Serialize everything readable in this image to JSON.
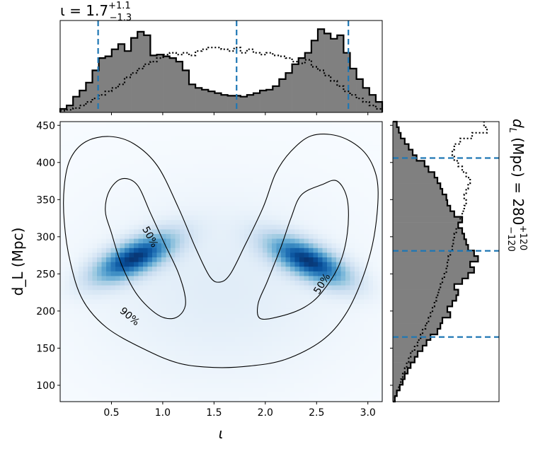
{
  "chart_data": [
    {
      "type": "heatmap",
      "panel": "joint",
      "xlabel": "ι",
      "ylabel": "d_L (Mpc)",
      "xlim": [
        0.0,
        3.14
      ],
      "ylim": [
        78,
        455
      ],
      "xticks": [
        0.5,
        1.0,
        1.5,
        2.0,
        2.5,
        3.0
      ],
      "xtick_labels": [
        "0.5",
        "1.0",
        "1.5",
        "2.0",
        "2.5",
        "3.0"
      ],
      "yticks": [
        100,
        150,
        200,
        250,
        300,
        350,
        400,
        450
      ],
      "ytick_labels": [
        "100",
        "150",
        "200",
        "250",
        "300",
        "350",
        "400",
        "450"
      ],
      "colormap": "Blues",
      "density_modes": [
        {
          "x": 0.72,
          "y": 272,
          "weight": 1.0
        },
        {
          "x": 2.42,
          "y": 268,
          "weight": 1.0
        }
      ],
      "contours": [
        {
          "label": "50%",
          "label_positions": [
            {
              "x": 0.88,
              "y": 300,
              "angle": 62
            },
            {
              "x": 2.55,
              "y": 237,
              "angle": -58
            }
          ],
          "regions": [
            [
              [
                0.48,
                362
              ],
              [
                0.6,
                378
              ],
              [
                0.75,
                370
              ],
              [
                0.88,
                332
              ],
              [
                1.02,
                290
              ],
              [
                1.15,
                252
              ],
              [
                1.22,
                218
              ],
              [
                1.2,
                200
              ],
              [
                1.1,
                190
              ],
              [
                0.95,
                195
              ],
              [
                0.75,
                222
              ],
              [
                0.6,
                262
              ],
              [
                0.5,
                305
              ],
              [
                0.44,
                335
              ]
            ],
            [
              [
                2.35,
                356
              ],
              [
                2.55,
                370
              ],
              [
                2.7,
                375
              ],
              [
                2.8,
                350
              ],
              [
                2.8,
                305
              ],
              [
                2.72,
                262
              ],
              [
                2.55,
                225
              ],
              [
                2.38,
                205
              ],
              [
                2.15,
                193
              ],
              [
                1.95,
                190
              ],
              [
                1.93,
                210
              ],
              [
                2.02,
                240
              ],
              [
                2.15,
                285
              ],
              [
                2.25,
                325
              ]
            ]
          ]
        },
        {
          "label": "90%",
          "label_positions": [
            {
              "x": 0.68,
              "y": 193,
              "angle": 40
            }
          ],
          "regions": [
            [
              [
                0.04,
                368
              ],
              [
                0.1,
                405
              ],
              [
                0.25,
                428
              ],
              [
                0.48,
                435
              ],
              [
                0.72,
                425
              ],
              [
                0.95,
                395
              ],
              [
                1.15,
                340
              ],
              [
                1.32,
                285
              ],
              [
                1.46,
                246
              ],
              [
                1.56,
                239
              ],
              [
                1.66,
                250
              ],
              [
                1.8,
                288
              ],
              [
                1.98,
                340
              ],
              [
                2.1,
                385
              ],
              [
                2.25,
                415
              ],
              [
                2.45,
                436
              ],
              [
                2.7,
                436
              ],
              [
                2.92,
                420
              ],
              [
                3.05,
                395
              ],
              [
                3.1,
                360
              ],
              [
                3.06,
                300
              ],
              [
                2.95,
                245
              ],
              [
                2.78,
                195
              ],
              [
                2.55,
                160
              ],
              [
                2.2,
                135
              ],
              [
                1.85,
                126
              ],
              [
                1.5,
                124
              ],
              [
                1.15,
                130
              ],
              [
                0.8,
                150
              ],
              [
                0.45,
                178
              ],
              [
                0.22,
                215
              ],
              [
                0.1,
                265
              ],
              [
                0.04,
                320
              ]
            ]
          ]
        }
      ]
    },
    {
      "type": "bar",
      "panel": "top-marginal",
      "title": "ι = 1.7^{+1.1}_{-1.3}",
      "title_main": "ι = 1.7",
      "title_sup": "+1.1",
      "title_sub": "−1.3",
      "orientation": "vertical",
      "x_edges": [
        0.0,
        0.0628,
        0.1256,
        0.1884,
        0.2512,
        0.314,
        0.3768,
        0.4396,
        0.5024,
        0.5652,
        0.628,
        0.6908,
        0.7536,
        0.8164,
        0.8792,
        0.942,
        1.0048,
        1.0676,
        1.1304,
        1.1932,
        1.256,
        1.3188,
        1.3816,
        1.4444,
        1.5072,
        1.57,
        1.6328,
        1.6956,
        1.7584,
        1.8212,
        1.884,
        1.9468,
        2.0096,
        2.0724,
        2.1352,
        2.198,
        2.2608,
        2.3236,
        2.3864,
        2.4492,
        2.512,
        2.5748,
        2.6376,
        2.7004,
        2.7632,
        2.826,
        2.8888,
        2.9516,
        3.0144,
        3.0772,
        3.14
      ],
      "filled_hist": [
        0.04,
        0.08,
        0.18,
        0.25,
        0.34,
        0.48,
        0.62,
        0.64,
        0.72,
        0.78,
        0.7,
        0.85,
        0.92,
        0.88,
        0.65,
        0.66,
        0.64,
        0.62,
        0.58,
        0.48,
        0.32,
        0.28,
        0.26,
        0.24,
        0.22,
        0.2,
        0.19,
        0.19,
        0.18,
        0.2,
        0.22,
        0.25,
        0.26,
        0.3,
        0.38,
        0.45,
        0.55,
        0.62,
        0.68,
        0.82,
        0.95,
        0.9,
        0.84,
        0.88,
        0.68,
        0.5,
        0.38,
        0.28,
        0.2,
        0.12
      ],
      "dotted_hist": [
        0.02,
        0.03,
        0.05,
        0.08,
        0.12,
        0.16,
        0.2,
        0.24,
        0.28,
        0.32,
        0.4,
        0.45,
        0.5,
        0.55,
        0.58,
        0.62,
        0.66,
        0.68,
        0.66,
        0.68,
        0.65,
        0.7,
        0.72,
        0.74,
        0.74,
        0.72,
        0.7,
        0.74,
        0.68,
        0.72,
        0.68,
        0.66,
        0.68,
        0.65,
        0.64,
        0.62,
        0.58,
        0.56,
        0.6,
        0.52,
        0.48,
        0.42,
        0.36,
        0.3,
        0.24,
        0.2,
        0.16,
        0.12,
        0.08,
        0.04
      ],
      "quantile_lines": [
        0.37,
        1.72,
        2.81
      ],
      "line_color": "#1f77b4",
      "fill_color": "#808080"
    },
    {
      "type": "bar",
      "panel": "right-marginal",
      "label": "d_L (Mpc) = 280^{+120}_{-120}",
      "label_main": "d",
      "label_sub_main": "L",
      "label_after": " (Mpc) = 280",
      "label_sup": "+120",
      "label_sub": "−120",
      "orientation": "horizontal",
      "y_edges": [
        78,
        85.54,
        93.08,
        100.62,
        108.16,
        115.7,
        123.24,
        130.78,
        138.32,
        145.86,
        153.4,
        160.94,
        168.48,
        176.02,
        183.56,
        191.1,
        198.64,
        206.18,
        213.72,
        221.26,
        228.8,
        236.34,
        243.88,
        251.42,
        258.96,
        266.5,
        274.04,
        281.58,
        289.12,
        296.66,
        304.2,
        311.74,
        319.28,
        326.82,
        334.36,
        341.9,
        349.44,
        356.98,
        364.52,
        372.06,
        379.6,
        387.14,
        394.68,
        402.22,
        409.76,
        417.3,
        424.84,
        432.38,
        439.92,
        447.46,
        455
      ],
      "filled_hist": [
        0.02,
        0.04,
        0.07,
        0.1,
        0.12,
        0.15,
        0.18,
        0.22,
        0.25,
        0.3,
        0.34,
        0.38,
        0.45,
        0.48,
        0.5,
        0.58,
        0.55,
        0.6,
        0.64,
        0.66,
        0.62,
        0.7,
        0.76,
        0.82,
        0.78,
        0.86,
        0.82,
        0.76,
        0.74,
        0.72,
        0.7,
        0.66,
        0.7,
        0.62,
        0.58,
        0.55,
        0.54,
        0.5,
        0.48,
        0.45,
        0.42,
        0.36,
        0.32,
        0.24,
        0.2,
        0.16,
        0.12,
        0.08,
        0.06,
        0.04
      ],
      "dotted_hist": [
        0.02,
        0.04,
        0.06,
        0.08,
        0.1,
        0.12,
        0.14,
        0.16,
        0.18,
        0.22,
        0.25,
        0.28,
        0.3,
        0.33,
        0.36,
        0.38,
        0.4,
        0.42,
        0.44,
        0.46,
        0.48,
        0.5,
        0.52,
        0.54,
        0.55,
        0.56,
        0.58,
        0.6,
        0.61,
        0.62,
        0.64,
        0.66,
        0.68,
        0.7,
        0.72,
        0.74,
        0.72,
        0.74,
        0.76,
        0.78,
        0.74,
        0.7,
        0.66,
        0.62,
        0.6,
        0.62,
        0.68,
        0.8,
        0.95,
        0.92
      ],
      "quantile_lines": [
        165,
        281,
        406
      ],
      "line_color": "#1f77b4",
      "fill_color": "#808080"
    }
  ]
}
